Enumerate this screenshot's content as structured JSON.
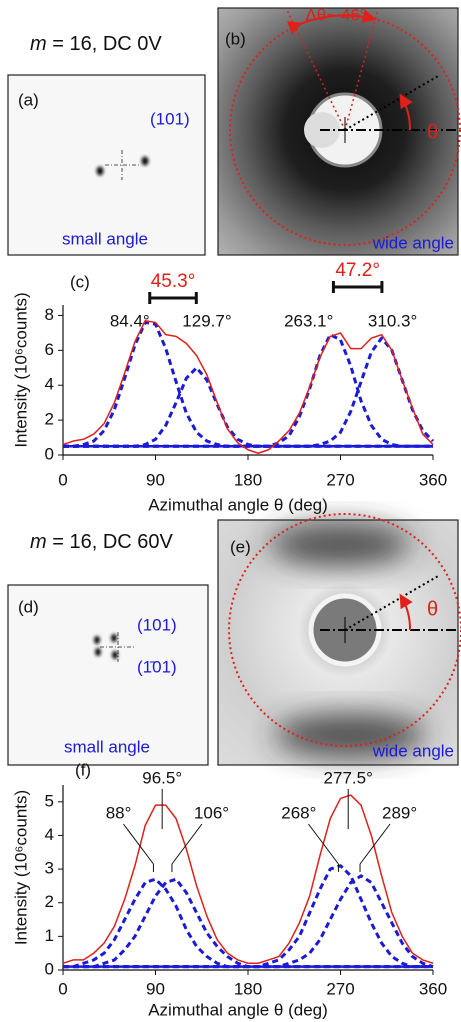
{
  "headings": [
    {
      "variable": "m",
      "condition": "= 16, DC 0V"
    },
    {
      "variable": "m",
      "condition": "= 16, DC 60V"
    }
  ],
  "panels": {
    "a": {
      "label": "(a)",
      "reflections": [
        "(101)"
      ],
      "caption": "small angle"
    },
    "b": {
      "label": "(b)",
      "spread": "Δθ~ 46°",
      "angle": "θ",
      "caption": "wide angle"
    },
    "d": {
      "label": "(d)",
      "reflections": [
        "(101)",
        "(1̄01)"
      ],
      "caption": "small angle"
    },
    "e": {
      "label": "(e)",
      "angle": "θ",
      "caption": "wide angle"
    }
  },
  "chart_data": [
    {
      "type": "line",
      "panel_label": "(c)",
      "xlabel": "Azimuthal angle θ (deg)",
      "ylabel": "Intensity (10⁶counts)",
      "x": [
        0,
        10,
        20,
        30,
        40,
        50,
        60,
        70,
        80,
        90,
        100,
        110,
        120,
        130,
        140,
        150,
        160,
        170,
        180,
        190,
        200,
        210,
        220,
        230,
        240,
        250,
        260,
        270,
        280,
        290,
        300,
        310,
        320,
        330,
        340,
        350,
        360
      ],
      "xlim": [
        0,
        360
      ],
      "ylim": [
        0,
        8.6
      ],
      "xticks": [
        0,
        90,
        180,
        270,
        360
      ],
      "yticks": [
        0,
        2,
        4,
        6,
        8
      ],
      "baseline": 0.5,
      "baseline_color": "#1a1ad8",
      "series": [
        {
          "color": "#1a1ad8",
          "style": "dashed",
          "values": [
            0.5,
            0.5,
            0.6,
            0.8,
            1.4,
            2.6,
            4.4,
            6.3,
            7.6,
            7.5,
            6.1,
            4.2,
            2.4,
            1.3,
            0.8,
            0.6,
            0.5,
            0.5,
            0.5,
            0.5,
            0.5,
            0.5,
            0.5,
            0.5,
            0.5,
            0.5,
            0.5,
            0.5,
            0.5,
            0.5,
            0.5,
            0.5,
            0.5,
            0.5,
            0.5,
            0.5,
            0.5
          ]
        },
        {
          "color": "#1a1ad8",
          "style": "dashed",
          "values": [
            0.5,
            0.5,
            0.5,
            0.5,
            0.5,
            0.5,
            0.5,
            0.5,
            0.6,
            0.9,
            1.7,
            3.0,
            4.4,
            5.0,
            4.3,
            2.9,
            1.6,
            0.9,
            0.6,
            0.5,
            0.5,
            0.5,
            0.5,
            0.5,
            0.5,
            0.5,
            0.5,
            0.5,
            0.5,
            0.5,
            0.5,
            0.5,
            0.5,
            0.5,
            0.5,
            0.5,
            0.5
          ]
        },
        {
          "color": "#1a1ad8",
          "style": "dashed",
          "values": [
            0.5,
            0.5,
            0.5,
            0.5,
            0.5,
            0.5,
            0.5,
            0.5,
            0.5,
            0.5,
            0.5,
            0.5,
            0.5,
            0.5,
            0.5,
            0.5,
            0.5,
            0.5,
            0.5,
            0.5,
            0.5,
            0.7,
            1.1,
            2.2,
            3.8,
            5.7,
            6.9,
            6.6,
            5.1,
            3.1,
            1.7,
            0.9,
            0.6,
            0.5,
            0.5,
            0.5,
            0.5
          ]
        },
        {
          "color": "#1a1ad8",
          "style": "dashed",
          "values": [
            0.5,
            0.5,
            0.5,
            0.5,
            0.5,
            0.5,
            0.5,
            0.5,
            0.5,
            0.5,
            0.5,
            0.5,
            0.5,
            0.5,
            0.5,
            0.5,
            0.5,
            0.5,
            0.5,
            0.5,
            0.5,
            0.5,
            0.5,
            0.5,
            0.5,
            0.6,
            0.8,
            1.3,
            2.5,
            4.2,
            5.9,
            6.7,
            6.0,
            4.3,
            2.6,
            1.4,
            0.8
          ]
        },
        {
          "color": "#e0201a",
          "style": "solid",
          "values": [
            0.6,
            0.8,
            0.9,
            1.2,
            1.8,
            3.0,
            4.7,
            6.5,
            7.7,
            7.6,
            6.9,
            6.8,
            6.4,
            5.7,
            4.6,
            3.0,
            1.5,
            0.7,
            0.3,
            0.1,
            0.3,
            0.8,
            1.4,
            2.4,
            3.9,
            5.6,
            6.8,
            7.0,
            6.1,
            6.1,
            6.7,
            6.9,
            6.0,
            4.3,
            2.7,
            1.2,
            0.6
          ]
        }
      ],
      "component_labels": [
        {
          "text": "84.4°",
          "x": 84.4
        },
        {
          "text": "129.7°",
          "x": 129.7
        },
        {
          "text": "263.1°",
          "x": 263.1
        },
        {
          "text": "310.3°",
          "x": 310.3
        }
      ],
      "separation_labels": [
        "45.3°",
        "47.2°"
      ],
      "separation_color": "#e0201a"
    },
    {
      "type": "line",
      "panel_label": "(f)",
      "xlabel": "Azimuthal angle θ (deg)",
      "ylabel": "Intensity (10⁶counts)",
      "x": [
        0,
        10,
        20,
        30,
        40,
        50,
        60,
        70,
        80,
        90,
        100,
        110,
        120,
        130,
        140,
        150,
        160,
        170,
        180,
        190,
        200,
        210,
        220,
        230,
        240,
        250,
        260,
        270,
        280,
        290,
        300,
        310,
        320,
        330,
        340,
        350,
        360
      ],
      "xlim": [
        0,
        360
      ],
      "ylim": [
        0,
        5.5
      ],
      "xticks": [
        0,
        90,
        180,
        270,
        360
      ],
      "yticks": [
        0,
        1,
        2,
        3,
        4,
        5
      ],
      "baseline": 0.1,
      "baseline_color": "#1a1ad8",
      "series": [
        {
          "color": "#1a1ad8",
          "style": "dashed",
          "values": [
            0.1,
            0.1,
            0.2,
            0.3,
            0.5,
            0.9,
            1.5,
            2.1,
            2.6,
            2.7,
            2.4,
            1.9,
            1.2,
            0.7,
            0.4,
            0.2,
            0.1,
            0.1,
            0.1,
            0.1,
            0.1,
            0.1,
            0.1,
            0.1,
            0.1,
            0.1,
            0.1,
            0.1,
            0.1,
            0.1,
            0.1,
            0.1,
            0.1,
            0.1,
            0.1,
            0.1,
            0.1
          ]
        },
        {
          "color": "#1a1ad8",
          "style": "dashed",
          "values": [
            0.1,
            0.1,
            0.1,
            0.1,
            0.2,
            0.3,
            0.6,
            1.0,
            1.6,
            2.2,
            2.6,
            2.7,
            2.3,
            1.7,
            1.1,
            0.7,
            0.4,
            0.2,
            0.1,
            0.1,
            0.1,
            0.1,
            0.1,
            0.1,
            0.1,
            0.1,
            0.1,
            0.1,
            0.1,
            0.1,
            0.1,
            0.1,
            0.1,
            0.1,
            0.1,
            0.1,
            0.1
          ]
        },
        {
          "color": "#1a1ad8",
          "style": "dashed",
          "values": [
            0.1,
            0.1,
            0.1,
            0.1,
            0.1,
            0.1,
            0.1,
            0.1,
            0.1,
            0.1,
            0.1,
            0.1,
            0.1,
            0.1,
            0.1,
            0.1,
            0.1,
            0.1,
            0.1,
            0.1,
            0.2,
            0.3,
            0.6,
            1.0,
            1.7,
            2.4,
            3.0,
            3.1,
            2.8,
            2.1,
            1.4,
            0.8,
            0.4,
            0.2,
            0.1,
            0.1,
            0.1
          ]
        },
        {
          "color": "#1a1ad8",
          "style": "dashed",
          "values": [
            0.1,
            0.1,
            0.1,
            0.1,
            0.1,
            0.1,
            0.1,
            0.1,
            0.1,
            0.1,
            0.1,
            0.1,
            0.1,
            0.1,
            0.1,
            0.1,
            0.1,
            0.1,
            0.1,
            0.1,
            0.1,
            0.1,
            0.2,
            0.3,
            0.5,
            0.9,
            1.5,
            2.1,
            2.6,
            2.8,
            2.6,
            2.0,
            1.4,
            0.8,
            0.4,
            0.2,
            0.1
          ]
        },
        {
          "color": "#e0201a",
          "style": "solid",
          "values": [
            0.2,
            0.3,
            0.3,
            0.5,
            0.8,
            1.3,
            2.1,
            3.1,
            4.3,
            4.9,
            4.9,
            4.5,
            3.6,
            2.5,
            1.6,
            0.9,
            0.5,
            0.3,
            0.2,
            0.2,
            0.3,
            0.4,
            0.8,
            1.4,
            2.2,
            3.4,
            4.5,
            5.1,
            5.2,
            4.9,
            4.0,
            2.8,
            1.7,
            1.0,
            0.5,
            0.3,
            0.2
          ]
        }
      ],
      "component_labels": [
        {
          "text": "88°",
          "x": 88
        },
        {
          "text": "106°",
          "x": 106
        },
        {
          "text": "268°",
          "x": 268
        },
        {
          "text": "289°",
          "x": 289
        }
      ],
      "peak_labels": [
        {
          "text": "96.5°",
          "x": 96.5
        },
        {
          "text": "277.5°",
          "x": 277.5
        }
      ]
    }
  ]
}
